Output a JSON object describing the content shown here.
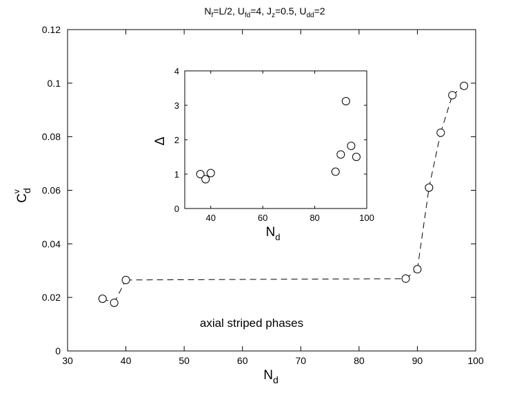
{
  "chart_data": [
    {
      "type": "line",
      "title": {
        "N": "N",
        "f": "f",
        "eqL2": "=L/2, U",
        "fd": "fd",
        "eq4": "=4, J",
        "z": "z",
        "eq05": "=0.5, U",
        "dd": "dd",
        "eq2": "=2"
      },
      "xlabel": {
        "main": "N",
        "sub": "d"
      },
      "ylabel": {
        "main": "C",
        "sub": "d",
        "sup": "v"
      },
      "xlim": [
        30,
        100
      ],
      "ylim": [
        0,
        0.12
      ],
      "xticks": [
        "30",
        "40",
        "50",
        "60",
        "70",
        "80",
        "90",
        "100"
      ],
      "yticks": [
        "0",
        "0.02",
        "0.04",
        "0.06",
        "0.08",
        "0.1",
        "0.12"
      ],
      "series": [
        {
          "marker": "circle",
          "line": "dashed",
          "x": [
            36,
            38,
            40,
            88,
            90,
            92,
            94,
            96,
            98
          ],
          "y": [
            0.0195,
            0.018,
            0.0265,
            0.027,
            0.0305,
            0.061,
            0.0815,
            0.0955,
            0.099
          ]
        }
      ],
      "annotation": "axial striped phases",
      "grid": false
    },
    {
      "type": "scatter",
      "inset": true,
      "xlabel": {
        "main": "N",
        "sub": "d"
      },
      "ylabel": "Δ",
      "xlim": [
        30,
        100
      ],
      "ylim": [
        0,
        4
      ],
      "xticks": [
        "40",
        "60",
        "80",
        "100"
      ],
      "yticks": [
        "0",
        "1",
        "2",
        "3",
        "4"
      ],
      "series": [
        {
          "marker": "circle",
          "x": [
            36,
            38,
            40,
            88,
            90,
            92,
            94,
            96
          ],
          "y": [
            1.0,
            0.85,
            1.03,
            1.07,
            1.57,
            3.12,
            1.82,
            1.5
          ]
        }
      ],
      "grid": false
    }
  ]
}
